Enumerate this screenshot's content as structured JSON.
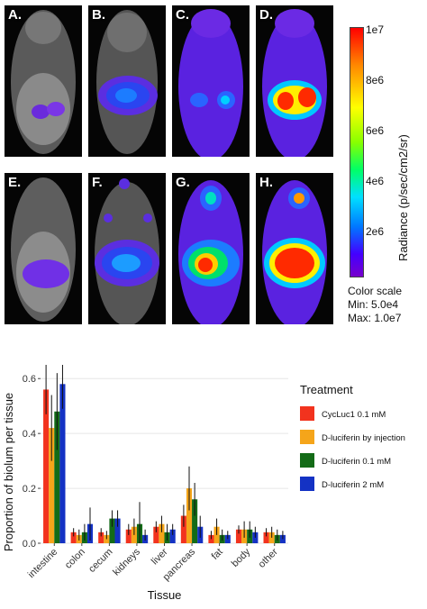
{
  "panels": [
    {
      "label": "A."
    },
    {
      "label": "B."
    },
    {
      "label": "C."
    },
    {
      "label": "D."
    },
    {
      "label": "E."
    },
    {
      "label": "F."
    },
    {
      "label": "G."
    },
    {
      "label": "H."
    }
  ],
  "colorbar": {
    "ticks": [
      "1e7",
      "8e6",
      "6e6",
      "4e6",
      "2e6"
    ],
    "tick_values": [
      10000000,
      8000000,
      6000000,
      4000000,
      2000000
    ],
    "axis_label": "Radiance (p/sec/cm2/sr)",
    "scale_title": "Color scale",
    "min_label": "Min:",
    "min_value": "5.0e4",
    "max_label": "Max:",
    "max_value": "1.0e7"
  },
  "chart_data": {
    "type": "bar",
    "xlabel": "Tissue",
    "ylabel": "Proportion of biolum per tissue",
    "ylim": [
      0,
      0.65
    ],
    "yticks": [
      "0.0",
      "0.2",
      "0.4",
      "0.6"
    ],
    "ytick_values": [
      0,
      0.2,
      0.4,
      0.6
    ],
    "categories": [
      "intestine",
      "colon",
      "cecum",
      "kidneys",
      "liver",
      "pancreas",
      "fat",
      "body",
      "other"
    ],
    "legend_title": "Treatment",
    "legend_position": "right",
    "series": [
      {
        "name": "CycLuc1 0.1 mM",
        "color": "#f2331e",
        "values": [
          0.56,
          0.04,
          0.04,
          0.05,
          0.06,
          0.1,
          0.03,
          0.05,
          0.04
        ],
        "err": [
          0.09,
          0.015,
          0.015,
          0.02,
          0.02,
          0.04,
          0.015,
          0.015,
          0.015
        ]
      },
      {
        "name": "D-luciferin  by injection",
        "color": "#f5a51a",
        "values": [
          0.42,
          0.03,
          0.03,
          0.06,
          0.07,
          0.2,
          0.06,
          0.05,
          0.04
        ],
        "err": [
          0.12,
          0.02,
          0.015,
          0.03,
          0.03,
          0.08,
          0.03,
          0.03,
          0.02
        ]
      },
      {
        "name": "D-luciferin 0.1 mM",
        "color": "#136b17",
        "values": [
          0.48,
          0.04,
          0.09,
          0.07,
          0.04,
          0.16,
          0.03,
          0.05,
          0.03
        ],
        "err": [
          0.14,
          0.03,
          0.03,
          0.08,
          0.03,
          0.06,
          0.02,
          0.03,
          0.02
        ]
      },
      {
        "name": "D-luciferin 2 mM",
        "color": "#1432c4",
        "values": [
          0.58,
          0.07,
          0.09,
          0.03,
          0.05,
          0.06,
          0.03,
          0.04,
          0.03
        ],
        "err": [
          0.09,
          0.06,
          0.03,
          0.02,
          0.02,
          0.04,
          0.015,
          0.02,
          0.015
        ]
      }
    ]
  }
}
